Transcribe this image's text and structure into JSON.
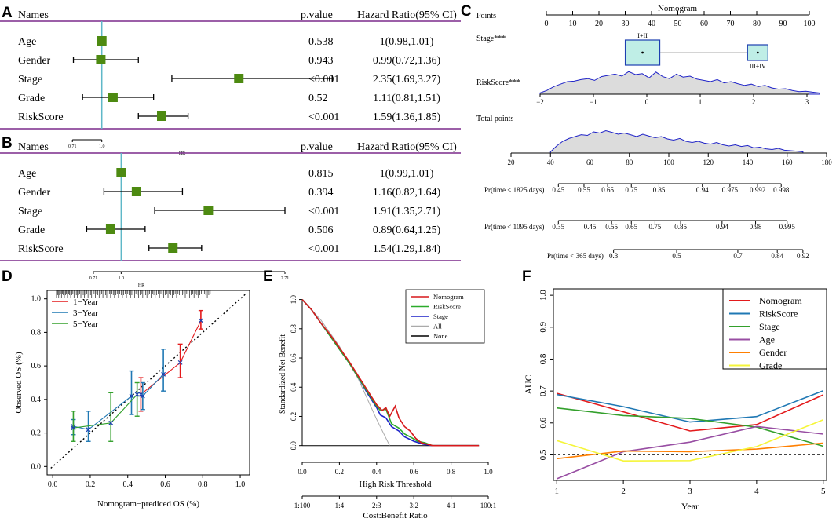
{
  "panels": {
    "A": "A",
    "B": "B",
    "C": "C",
    "D": "D",
    "E": "E",
    "F": "F"
  },
  "colors": {
    "forest_bar": "#7b2a8c",
    "forest_box": "#4d8a11",
    "forest_ref": "#5fb8c8",
    "nomo_box_fill": "#bfeee6",
    "nomo_box_stroke": "#1d3fb0",
    "density": "#1f23c8",
    "density_fill": "#dcdcdc"
  },
  "chart_data": [
    {
      "id": "A",
      "type": "forest",
      "headers": {
        "names": "Names",
        "p": "p.value",
        "hr": "Hazard Ratio(95% CI)"
      },
      "axis_label": "HR",
      "axis_ticks": [
        {
          "value": 0.71,
          "label": "0.71"
        },
        {
          "value": 1.0,
          "label": "1.0"
        }
      ],
      "axis_range": [
        0.6,
        3.4
      ],
      "ref": 1.0,
      "rows": [
        {
          "name": "Age",
          "p": "0.538",
          "hr_text": "1(0.98,1.01)",
          "hr": 1.0,
          "lo": 0.98,
          "hi": 1.01
        },
        {
          "name": "Gender",
          "p": "0.943",
          "hr_text": "0.99(0.72,1.36)",
          "hr": 0.99,
          "lo": 0.72,
          "hi": 1.36
        },
        {
          "name": "Stage",
          "p": "<0.001",
          "hr_text": "2.35(1.69,3.27)",
          "hr": 2.35,
          "lo": 1.69,
          "hi": 3.27
        },
        {
          "name": "Grade",
          "p": "0.52",
          "hr_text": "1.11(0.81,1.51)",
          "hr": 1.11,
          "lo": 0.81,
          "hi": 1.51
        },
        {
          "name": "RiskScore",
          "p": "<0.001",
          "hr_text": "1.59(1.36,1.85)",
          "hr": 1.59,
          "lo": 1.36,
          "hi": 1.85
        }
      ]
    },
    {
      "id": "B",
      "type": "forest",
      "headers": {
        "names": "Names",
        "p": "p.value",
        "hr": "Hazard Ratio(95% CI)"
      },
      "axis_label": "HR",
      "axis_ticks": [
        {
          "value": 0.71,
          "label": "0.71"
        },
        {
          "value": 1.0,
          "label": "1.0"
        },
        {
          "value": 2.71,
          "label": "2.71"
        }
      ],
      "axis_range": [
        0.53,
        2.71
      ],
      "ref": 1.0,
      "rows": [
        {
          "name": "Age",
          "p": "0.815",
          "hr_text": "1(0.99,1.01)",
          "hr": 1.0,
          "lo": 0.99,
          "hi": 1.01
        },
        {
          "name": "Gender",
          "p": "0.394",
          "hr_text": "1.16(0.82,1.64)",
          "hr": 1.16,
          "lo": 0.82,
          "hi": 1.64
        },
        {
          "name": "Stage",
          "p": "<0.001",
          "hr_text": "1.91(1.35,2.71)",
          "hr": 1.91,
          "lo": 1.35,
          "hi": 2.71
        },
        {
          "name": "Grade",
          "p": "0.506",
          "hr_text": "0.89(0.64,1.25)",
          "hr": 0.89,
          "lo": 0.64,
          "hi": 1.25
        },
        {
          "name": "RiskScore",
          "p": "<0.001",
          "hr_text": "1.54(1.29,1.84)",
          "hr": 1.54,
          "lo": 1.29,
          "hi": 1.84
        }
      ]
    },
    {
      "id": "C",
      "type": "nomogram",
      "title": "Nomogram",
      "points": {
        "label": "Points",
        "min": 0,
        "max": 100,
        "ticks": [
          0,
          10,
          20,
          30,
          40,
          50,
          60,
          70,
          80,
          90,
          100
        ]
      },
      "stage": {
        "label": "Stage***",
        "categories": [
          {
            "label": "I+II",
            "points": 33
          },
          {
            "label": "III+IV",
            "points": 78
          }
        ]
      },
      "riskscore": {
        "label": "RiskScore***",
        "min": -2,
        "max": 3,
        "ticks": [
          -2,
          -1,
          0,
          1,
          2,
          3
        ],
        "density": [
          0.05,
          0.15,
          0.3,
          0.4,
          0.5,
          0.52,
          0.58,
          0.62,
          0.55,
          0.7,
          0.75,
          0.8,
          0.72,
          0.9,
          0.78,
          0.82,
          0.65,
          0.88,
          0.7,
          0.62,
          0.8,
          0.68,
          0.72,
          0.6,
          0.55,
          0.5,
          0.58,
          0.45,
          0.5,
          0.42,
          0.35,
          0.4,
          0.3,
          0.35,
          0.25,
          0.2,
          0.22,
          0.15,
          0.1,
          0.12,
          0.08,
          0.05
        ]
      },
      "total": {
        "label": "Total points",
        "min": 20,
        "max": 180,
        "ticks": [
          20,
          40,
          60,
          80,
          100,
          120,
          140,
          160,
          180
        ],
        "density": [
          0.05,
          0.3,
          0.5,
          0.62,
          0.7,
          0.78,
          0.75,
          0.9,
          0.85,
          0.95,
          0.88,
          0.8,
          0.85,
          0.78,
          0.7,
          0.8,
          0.72,
          0.65,
          0.7,
          0.6,
          0.55,
          0.62,
          0.5,
          0.45,
          0.5,
          0.42,
          0.38,
          0.45,
          0.35,
          0.3,
          0.35,
          0.28,
          0.32,
          0.22,
          0.25,
          0.18,
          0.15,
          0.2,
          0.12,
          0.1,
          0.08,
          0.05
        ]
      },
      "prob_scales": [
        {
          "label": "Pr(time < 1825 days)",
          "ticks": [
            {
              "v": "0.45",
              "p": 44
            },
            {
              "v": "0.55",
              "p": 57
            },
            {
              "v": "0.65",
              "p": 69
            },
            {
              "v": "0.75",
              "p": 81
            },
            {
              "v": "0.85",
              "p": 95
            },
            {
              "v": "0.94",
              "p": 117
            },
            {
              "v": "0.975",
              "p": 131
            },
            {
              "v": "0.992",
              "p": 145
            },
            {
              "v": "0.998",
              "p": 157
            }
          ]
        },
        {
          "label": "Pr(time < 1095  days)",
          "ticks": [
            {
              "v": "0.35",
              "p": 44
            },
            {
              "v": "0.45",
              "p": 60
            },
            {
              "v": "0.55",
              "p": 71
            },
            {
              "v": "0.65",
              "p": 81
            },
            {
              "v": "0.75",
              "p": 93
            },
            {
              "v": "0.85",
              "p": 106
            },
            {
              "v": "0.94",
              "p": 127
            },
            {
              "v": "0.98",
              "p": 144
            },
            {
              "v": "0.995",
              "p": 160
            }
          ]
        },
        {
          "label": "Pr(time < 365  days)",
          "ticks": [
            {
              "v": "0.3",
              "p": 72
            },
            {
              "v": "0.5",
              "p": 104
            },
            {
              "v": "0.7",
              "p": 135
            },
            {
              "v": "0.84",
              "p": 155
            },
            {
              "v": "0.92",
              "p": 168
            }
          ]
        }
      ]
    },
    {
      "id": "D",
      "type": "calibration",
      "xlabel": "Nomogram−prediced OS (%)",
      "ylabel": "Observed OS (%)",
      "xlim": [
        -0.03,
        1.05
      ],
      "ylim": [
        -0.05,
        1.05
      ],
      "xticks": [
        "0.0",
        "0.2",
        "0.4",
        "0.6",
        "0.8",
        "1.0"
      ],
      "yticks": [
        "0.0",
        "0.2",
        "0.4",
        "0.6",
        "0.8",
        "1.0"
      ],
      "series": [
        {
          "name": "1−Year",
          "color": "#e31a1c",
          "points": [
            {
              "x": 0.47,
              "y": 0.43,
              "lo": 0.33,
              "hi": 0.53
            },
            {
              "x": 0.68,
              "y": 0.62,
              "lo": 0.53,
              "hi": 0.73
            },
            {
              "x": 0.79,
              "y": 0.87,
              "lo": 0.82,
              "hi": 0.93
            }
          ]
        },
        {
          "name": "3−Year",
          "color": "#1f78b4",
          "points": [
            {
              "x": 0.11,
              "y": 0.24,
              "lo": 0.19,
              "hi": 0.28
            },
            {
              "x": 0.19,
              "y": 0.22,
              "lo": 0.15,
              "hi": 0.33
            },
            {
              "x": 0.42,
              "y": 0.42,
              "lo": 0.31,
              "hi": 0.57
            },
            {
              "x": 0.48,
              "y": 0.42,
              "lo": 0.34,
              "hi": 0.5
            },
            {
              "x": 0.59,
              "y": 0.55,
              "lo": 0.45,
              "hi": 0.7
            }
          ]
        },
        {
          "name": "5−Year",
          "color": "#33a02c",
          "points": [
            {
              "x": 0.11,
              "y": 0.23,
              "lo": 0.15,
              "hi": 0.33
            },
            {
              "x": 0.31,
              "y": 0.26,
              "lo": 0.15,
              "hi": 0.44
            },
            {
              "x": 0.45,
              "y": 0.43,
              "lo": 0.3,
              "hi": 0.5
            }
          ]
        }
      ]
    },
    {
      "id": "E",
      "type": "line",
      "ylabel": "Standardized Net Benefit",
      "xlabel": "High Risk Threshold",
      "x2label": "Cost:Benefit Ratio",
      "xlim": [
        0,
        1
      ],
      "ylim": [
        -0.05,
        1.03
      ],
      "xticks": [
        "0.0",
        "0.2",
        "0.4",
        "0.6",
        "0.8",
        "1.0"
      ],
      "yticks": [
        "0.0",
        "0.2",
        "0.4",
        "0.6",
        "0.8",
        "1.0"
      ],
      "x2ticks": [
        "1:100",
        "1:4",
        "2:3",
        "3:2",
        "4:1",
        "100:1"
      ],
      "series": [
        {
          "name": "Nomogram",
          "color": "#d7191c",
          "x": [
            0,
            0.05,
            0.1,
            0.15,
            0.2,
            0.25,
            0.3,
            0.35,
            0.4,
            0.43,
            0.45,
            0.47,
            0.5,
            0.52,
            0.55,
            0.58,
            0.61,
            0.64,
            0.67,
            0.7,
            0.8,
            0.95
          ],
          "y": [
            1,
            0.93,
            0.84,
            0.76,
            0.67,
            0.58,
            0.48,
            0.38,
            0.28,
            0.24,
            0.26,
            0.2,
            0.27,
            0.19,
            0.13,
            0.1,
            0.05,
            0.02,
            0.01,
            0,
            0,
            0
          ]
        },
        {
          "name": "RiskScore",
          "color": "#2bab2b",
          "x": [
            0,
            0.05,
            0.1,
            0.15,
            0.2,
            0.25,
            0.3,
            0.35,
            0.4,
            0.42,
            0.45,
            0.48,
            0.52,
            0.55,
            0.58,
            0.62,
            0.66,
            0.7,
            0.8,
            0.95
          ],
          "y": [
            1,
            0.93,
            0.84,
            0.75,
            0.66,
            0.57,
            0.47,
            0.37,
            0.27,
            0.24,
            0.25,
            0.15,
            0.12,
            0.08,
            0.06,
            0.03,
            0.02,
            0,
            0,
            0
          ]
        },
        {
          "name": "Stage",
          "color": "#1b21c9",
          "x": [
            0,
            0.05,
            0.1,
            0.15,
            0.2,
            0.25,
            0.3,
            0.35,
            0.4,
            0.42,
            0.45,
            0.48,
            0.52,
            0.55,
            0.6,
            0.65,
            0.7,
            0.8,
            0.95
          ],
          "y": [
            1,
            0.93,
            0.84,
            0.75,
            0.66,
            0.57,
            0.47,
            0.36,
            0.26,
            0.21,
            0.19,
            0.13,
            0.1,
            0.06,
            0.03,
            0.01,
            0,
            0,
            0
          ]
        },
        {
          "name": "All",
          "color": "#aaaaaa",
          "x": [
            0,
            0.1,
            0.2,
            0.3,
            0.4,
            0.47
          ],
          "y": [
            1,
            0.86,
            0.68,
            0.46,
            0.18,
            0
          ]
        },
        {
          "name": "None",
          "color": "#000000",
          "x": [
            0,
            0.95
          ],
          "y": [
            0,
            0
          ]
        }
      ]
    },
    {
      "id": "F",
      "type": "line",
      "ylabel": "AUC",
      "xlabel": "Year",
      "xlim": [
        0.95,
        5.05
      ],
      "ylim": [
        0.42,
        1.02
      ],
      "xticks": [
        "1",
        "2",
        "3",
        "4",
        "5"
      ],
      "yticks": [
        "0.5",
        "0.6",
        "0.7",
        "0.8",
        "0.9",
        "1.0"
      ],
      "reference": 0.5,
      "series": [
        {
          "name": "Nomogram",
          "color": "#e31a1c",
          "x": [
            1,
            2,
            3,
            4,
            5
          ],
          "y": [
            0.693,
            0.635,
            0.575,
            0.595,
            0.688
          ]
        },
        {
          "name": "RiskScore",
          "color": "#1f78b4",
          "x": [
            1,
            2,
            3,
            4,
            5
          ],
          "y": [
            0.689,
            0.651,
            0.603,
            0.62,
            0.701
          ]
        },
        {
          "name": "Stage",
          "color": "#33a02c",
          "x": [
            1,
            2,
            3,
            4,
            5
          ],
          "y": [
            0.647,
            0.623,
            0.614,
            0.587,
            0.527
          ]
        },
        {
          "name": "Age",
          "color": "#984ea3",
          "x": [
            1,
            2,
            3,
            4,
            5
          ],
          "y": [
            0.425,
            0.51,
            0.54,
            0.589,
            0.565
          ]
        },
        {
          "name": "Gender",
          "color": "#ff7f00",
          "x": [
            1,
            2,
            3,
            4,
            5
          ],
          "y": [
            0.488,
            0.512,
            0.51,
            0.518,
            0.537
          ]
        },
        {
          "name": "Grade",
          "color": "#f5f53a",
          "x": [
            1,
            2,
            3,
            4,
            5
          ],
          "y": [
            0.545,
            0.481,
            0.482,
            0.526,
            0.61
          ]
        }
      ]
    }
  ]
}
